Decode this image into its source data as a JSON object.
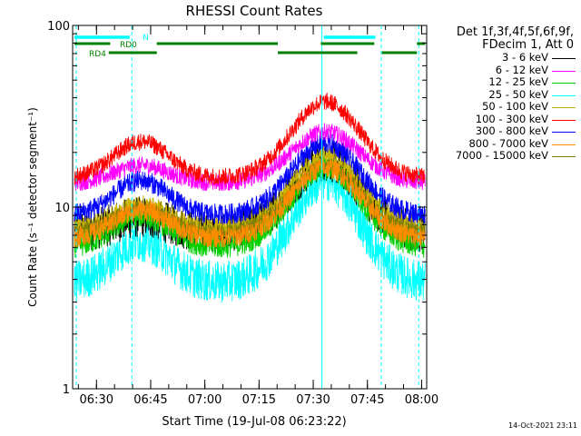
{
  "chart_data": {
    "type": "line",
    "title": "RHESSI Count Rates",
    "xlabel": "Start Time (19-Jul-08 06:23:22)",
    "ylabel": "Count Rate (s⁻¹ detector segment⁻¹)",
    "yscale": "log",
    "ylim": [
      1,
      100
    ],
    "xlim_minutes": [
      0,
      98
    ],
    "x_ticks": [
      {
        "label": "06:30",
        "minute": 6.6
      },
      {
        "label": "06:45",
        "minute": 21.6
      },
      {
        "label": "07:00",
        "minute": 36.6
      },
      {
        "label": "07:15",
        "minute": 51.6
      },
      {
        "label": "07:30",
        "minute": 66.6
      },
      {
        "label": "07:45",
        "minute": 81.6
      },
      {
        "label": "08:00",
        "minute": 96.6
      }
    ],
    "y_ticks": [
      {
        "label": "1",
        "value": 1
      },
      {
        "label": "10",
        "value": 10
      },
      {
        "label": "100",
        "value": 100
      }
    ],
    "legend_header": [
      "Det 1f,3f,4f,5f,6f,9f,",
      "FDecim 1, Att 0"
    ],
    "series": [
      {
        "name": "3 - 6 keV",
        "color": "#000000",
        "base": 7.2,
        "peak1": 8.8,
        "peak2": 18.0,
        "noise": 0.12
      },
      {
        "name": "6 - 12 keV",
        "color": "#ff00ff",
        "base": 13.5,
        "peak1": 17.0,
        "peak2": 26.0,
        "noise": 0.05
      },
      {
        "name": "12 - 25 keV",
        "color": "#00d000",
        "base": 6.0,
        "peak1": 9.0,
        "peak2": 16.5,
        "noise": 0.07
      },
      {
        "name": "25 - 50 keV",
        "color": "#00ffff",
        "base": 3.8,
        "peak1": 6.5,
        "peak2": 14.0,
        "noise": 0.12
      },
      {
        "name": "50 - 100 keV",
        "color": "#c8b400",
        "base": 7.6,
        "peak1": 10.2,
        "peak2": 19.0,
        "noise": 0.06
      },
      {
        "name": "100 - 300 keV",
        "color": "#ff0000",
        "base": 14.5,
        "peak1": 23.0,
        "peak2": 38.0,
        "noise": 0.05
      },
      {
        "name": "300 - 800 keV",
        "color": "#0000ff",
        "base": 9.0,
        "peak1": 14.0,
        "peak2": 22.5,
        "noise": 0.06
      },
      {
        "name": "800 - 7000 keV",
        "color": "#ff8c00",
        "base": 6.7,
        "peak1": 9.6,
        "peak2": 16.5,
        "noise": 0.06
      },
      {
        "name": "7000 - 15000 keV",
        "color": "#808000",
        "base": 7.3,
        "peak1": 10.0,
        "peak2": 17.0,
        "noise": 0.04
      }
    ],
    "vertical_lines": [
      {
        "minute": 1.0,
        "style": "dashed",
        "color": "#00ffff"
      },
      {
        "minute": 16.4,
        "style": "dashed",
        "color": "#00ffff"
      },
      {
        "minute": 69.0,
        "style": "solid",
        "color": "#00ffff"
      },
      {
        "minute": 85.4,
        "style": "dashed",
        "color": "#00ffff"
      },
      {
        "minute": 95.8,
        "style": "dashed",
        "color": "#00ffff"
      }
    ],
    "flag_bars": [
      {
        "label": "N",
        "color": "#00ffff",
        "row": 0,
        "segments": [
          [
            0.5,
            15.8
          ],
          [
            69.5,
            83.8
          ]
        ]
      },
      {
        "label": "RD0",
        "color": "#008000",
        "row": 1,
        "segments": [
          [
            0.5,
            10.4
          ],
          [
            23.3,
            56.8
          ],
          [
            68.7,
            83.5
          ],
          [
            95.3,
            97.6
          ]
        ]
      },
      {
        "label": "RD4",
        "color": "#008000",
        "row": 2,
        "segments": [
          [
            10.0,
            23.3
          ],
          [
            56.8,
            78.8
          ],
          [
            85.6,
            95.3
          ]
        ]
      }
    ],
    "footer": "14-Oct-2021 23:11"
  }
}
